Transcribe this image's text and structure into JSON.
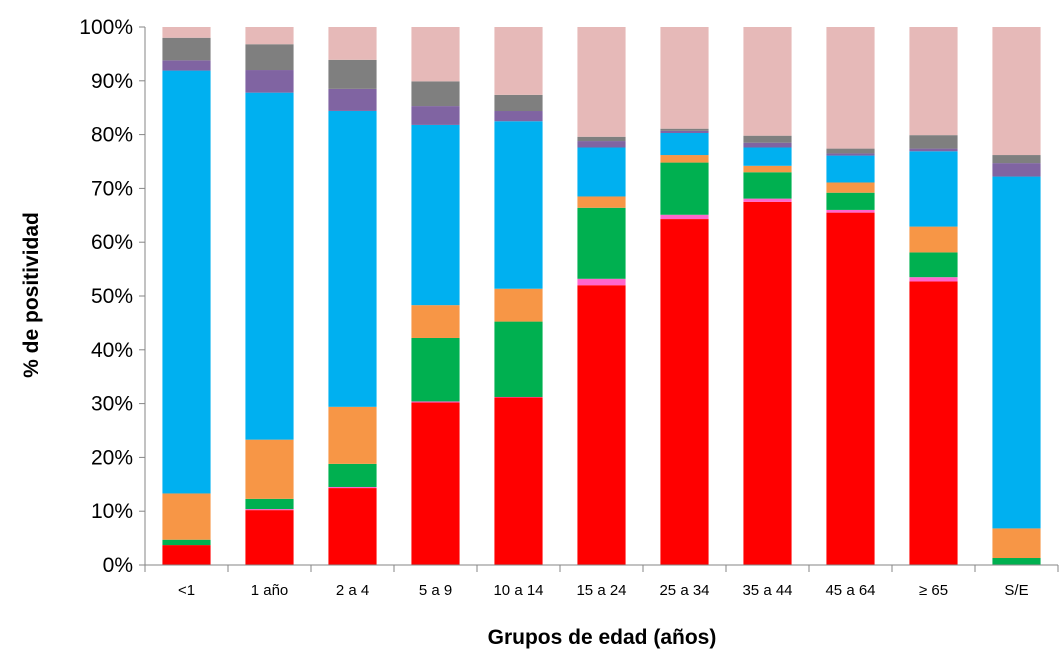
{
  "chart_data": {
    "type": "bar",
    "stacked": true,
    "title": "",
    "xlabel": "Grupos de edad (años)",
    "ylabel": "% de positividad",
    "ylim": [
      0,
      100
    ],
    "y_ticks": [
      "0%",
      "10%",
      "20%",
      "30%",
      "40%",
      "50%",
      "60%",
      "70%",
      "80%",
      "90%",
      "100%"
    ],
    "y_tick_values": [
      0,
      10,
      20,
      30,
      40,
      50,
      60,
      70,
      80,
      90,
      100
    ],
    "grid": false,
    "legend": "none",
    "categories": [
      "<1",
      "1 año",
      "2 a 4",
      "5 a 9",
      "10 a 14",
      "15 a 24",
      "25 a 34",
      "35 a 44",
      "45 a 64",
      "≥ 65",
      "S/E"
    ],
    "series": [
      {
        "color": "#ff0000",
        "values": [
          3.7,
          10.2,
          14.3,
          30.2,
          31.1,
          52.0,
          64.3,
          67.5,
          65.5,
          52.7,
          0.0
        ]
      },
      {
        "color": "#ff66cc",
        "values": [
          0.0,
          0.2,
          0.2,
          0.2,
          0.1,
          1.2,
          0.8,
          0.6,
          0.5,
          0.8,
          0.1
        ]
      },
      {
        "color": "#00b050",
        "values": [
          1.0,
          1.9,
          4.3,
          11.8,
          14.0,
          13.2,
          9.7,
          4.9,
          3.2,
          4.6,
          1.2
        ]
      },
      {
        "color": "#f79646",
        "values": [
          8.6,
          11.0,
          10.6,
          6.1,
          6.1,
          2.1,
          1.4,
          1.2,
          1.9,
          4.8,
          5.5
        ]
      },
      {
        "color": "#00b0f0",
        "values": [
          78.6,
          64.5,
          55.0,
          33.5,
          31.1,
          9.1,
          4.1,
          3.4,
          5.0,
          14.0,
          65.4
        ]
      },
      {
        "color": "#8064a2",
        "values": [
          1.9,
          4.2,
          4.1,
          3.5,
          1.9,
          1.2,
          0.4,
          0.9,
          0.4,
          0.5,
          2.5
        ]
      },
      {
        "color": "#7f7f7f",
        "values": [
          4.2,
          4.8,
          5.4,
          4.6,
          3.0,
          0.8,
          0.4,
          1.3,
          0.9,
          2.5,
          1.5
        ]
      },
      {
        "color": "#e6b9b8",
        "values": [
          2.0,
          3.2,
          6.1,
          10.1,
          12.6,
          20.4,
          18.9,
          20.2,
          22.6,
          20.1,
          23.8
        ]
      }
    ]
  }
}
